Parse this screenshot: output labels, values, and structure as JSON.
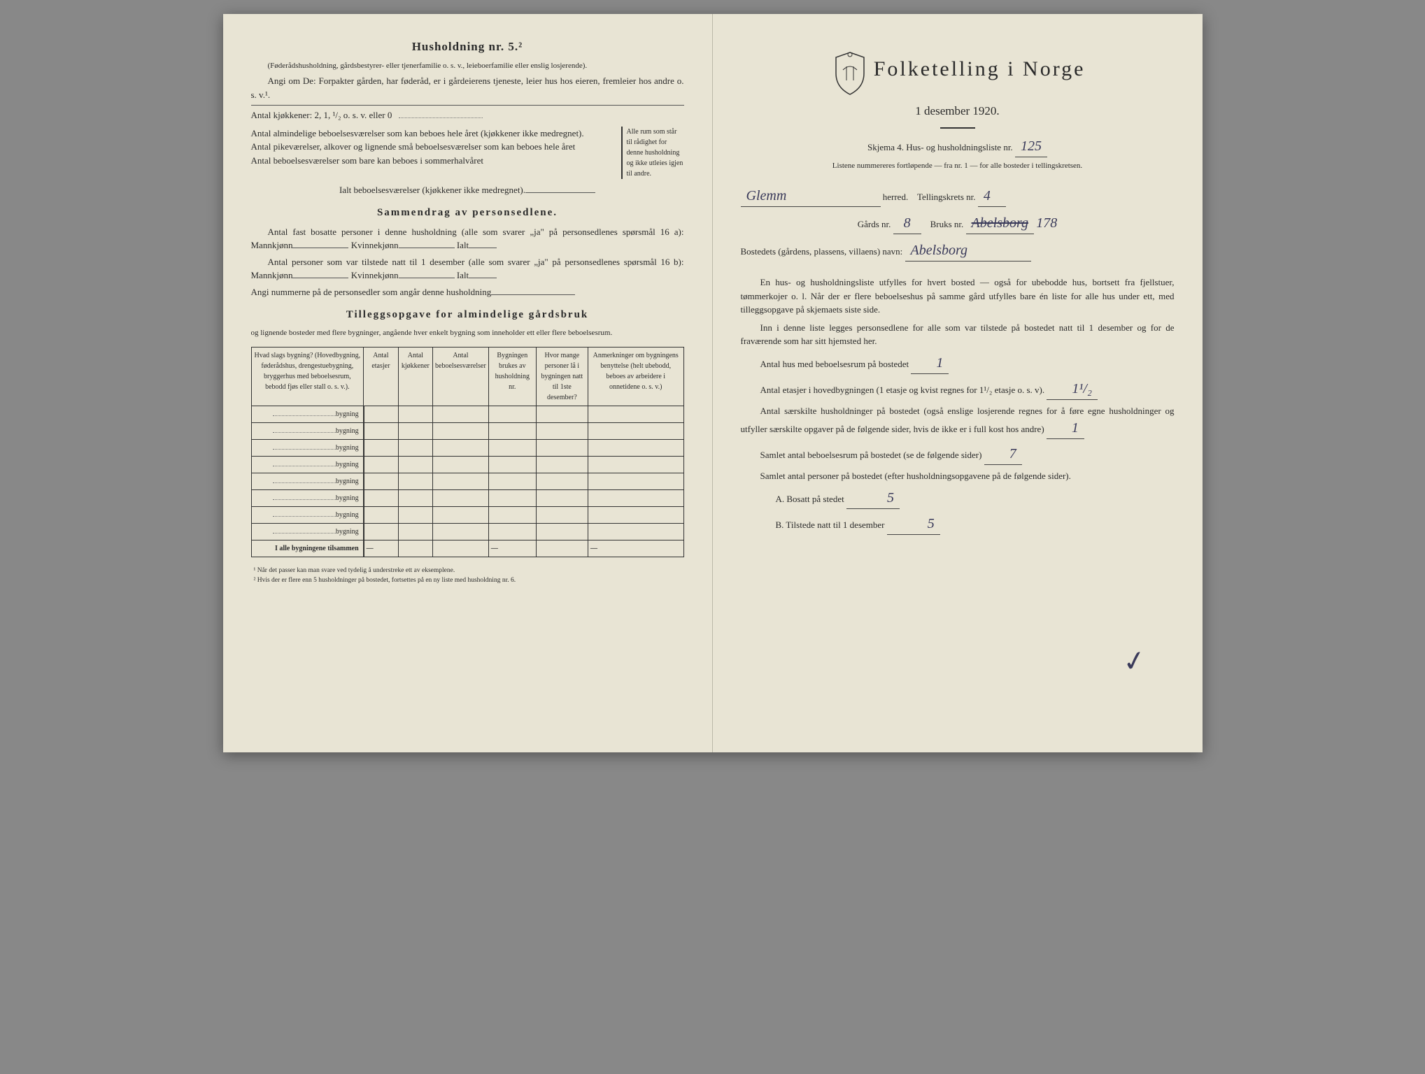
{
  "left": {
    "heading": "Husholdning nr. 5.²",
    "intro1": "(Føderådshusholdning, gårdsbestyrer- eller tjenerfamilie o. s. v., leieboerfamilie eller enslig losjerende).",
    "intro2": "Angi om De: Forpakter gården, har føderåd, er i gårdeierens tjeneste, leier hus hos eieren, fremleier hos andre o. s. v.¹.",
    "kitchens": "Antal kjøkkener: 2, 1, ¹/₂ o. s. v. eller 0",
    "room_lines": [
      "Antal almindelige beboelsesværelser som kan beboes hele året (kjøkkener ikke medregnet).",
      "Antal pikeværelser, alkover og lignende små beboelsesværelser som kan beboes hele året",
      "Antal beboelsesværelser som bare kan beboes i sommerhalvåret"
    ],
    "brace_note": "Alle rum som står til rådighet for denne husholdning og ikke utleies igjen til andre.",
    "rooms_total": "Ialt beboelsesværelser (kjøkkener ikke medregnet).",
    "section2_title": "Sammendrag av personsedlene.",
    "s2_line1": "Antal fast bosatte personer i denne husholdning (alle som svarer „ja\" på personsedlenes spørsmål 16 a): Mannkjønn",
    "s2_kvinne": "Kvinnekjønn",
    "s2_ialt": "Ialt",
    "s2_line2": "Antal personer som var tilstede natt til 1 desember (alle som svarer „ja\" på personsedlenes spørsmål 16 b): Mannkjønn",
    "s2_line3": "Angi nummerne på de personsedler som angår denne husholdning",
    "section3_title": "Tilleggsopgave for almindelige gårdsbruk",
    "s3_intro": "og lignende bosteder med flere bygninger, angående hver enkelt bygning som inneholder ett eller flere beboelsesrum.",
    "table_headers": [
      "Hvad slags bygning?\n(Hovedbygning, føderådshus, drengestuebygning, bryggerhus med beboelsesrum, bebodd fjøs eller stall o. s. v.).",
      "Antal etasjer",
      "Antal kjøkkener",
      "Antal beboelsesværelser",
      "Bygningen brukes av husholdning nr.",
      "Hvor mange personer lå i bygningen natt til 1ste desember?",
      "Anmerkninger om bygningens benyttelse (helt ubebodd, beboes av arbeidere i onnetidene o. s. v.)"
    ],
    "bygning_label": "bygning",
    "sum_label": "I alle bygningene tilsammen",
    "footnote1": "¹ Når det passer kan man svare ved tydelig å understreke ett av eksemplene.",
    "footnote2": "² Hvis der er flere enn 5 husholdninger på bostedet, fortsettes på en ny liste med husholdning nr. 6."
  },
  "right": {
    "title": "Folketelling i Norge",
    "date": "1 desember 1920.",
    "skjema_line": "Skjema 4. Hus- og husholdningsliste nr.",
    "skjema_nr": "125",
    "listene": "Listene nummereres fortløpende — fra nr. 1 — for alle bosteder i tellingskretsen.",
    "herred_value": "Glemm",
    "herred_label": "herred.",
    "krets_label": "Tellingskrets nr.",
    "krets_value": "4",
    "gards_label": "Gårds nr.",
    "gards_value": "8",
    "bruks_label": "Bruks nr.",
    "bruks_strike": "Abelsborg",
    "bruks_value": "178",
    "bosted_label": "Bostedets (gårdens, plassens, villaens) navn:",
    "bosted_value": "Abelsborg",
    "para1": "En hus- og husholdningsliste utfylles for hvert bosted — også for ubebodde hus, bortsett fra fjellstuer, tømmerkojer o. l. Når der er flere beboelseshus på samme gård utfylles bare én liste for alle hus under ett, med tilleggsopgave på skjemaets siste side.",
    "para2": "Inn i denne liste legges personsedlene for alle som var tilstede på bostedet natt til 1 desember og for de fraværende som har sitt hjemsted her.",
    "q1": "Antal hus med beboelsesrum på bostedet",
    "q1_val": "1",
    "q2a": "Antal etasjer i hovedbygningen (1 etasje og kvist regnes for 1¹/₂ etasje o. s. v).",
    "q2_val": "1¹/₂",
    "q3": "Antal særskilte husholdninger på bostedet (også enslige losjerende regnes for å føre egne husholdninger og utfyller særskilte opgaver på de følgende sider, hvis de ikke er i full kost hos andre)",
    "q3_val": "1",
    "q4": "Samlet antal beboelsesrum på bostedet (se de følgende sider)",
    "q4_val": "7",
    "q5": "Samlet antal personer på bostedet (efter husholdningsopgavene på de følgende sider).",
    "qA": "A. Bosatt på stedet",
    "qA_val": "5",
    "qB": "B. Tilstede natt til 1 desember",
    "qB_val": "5"
  },
  "colors": {
    "paper": "#e8e4d4",
    "ink": "#2a2a2a",
    "handwriting": "#3a3a5a"
  }
}
